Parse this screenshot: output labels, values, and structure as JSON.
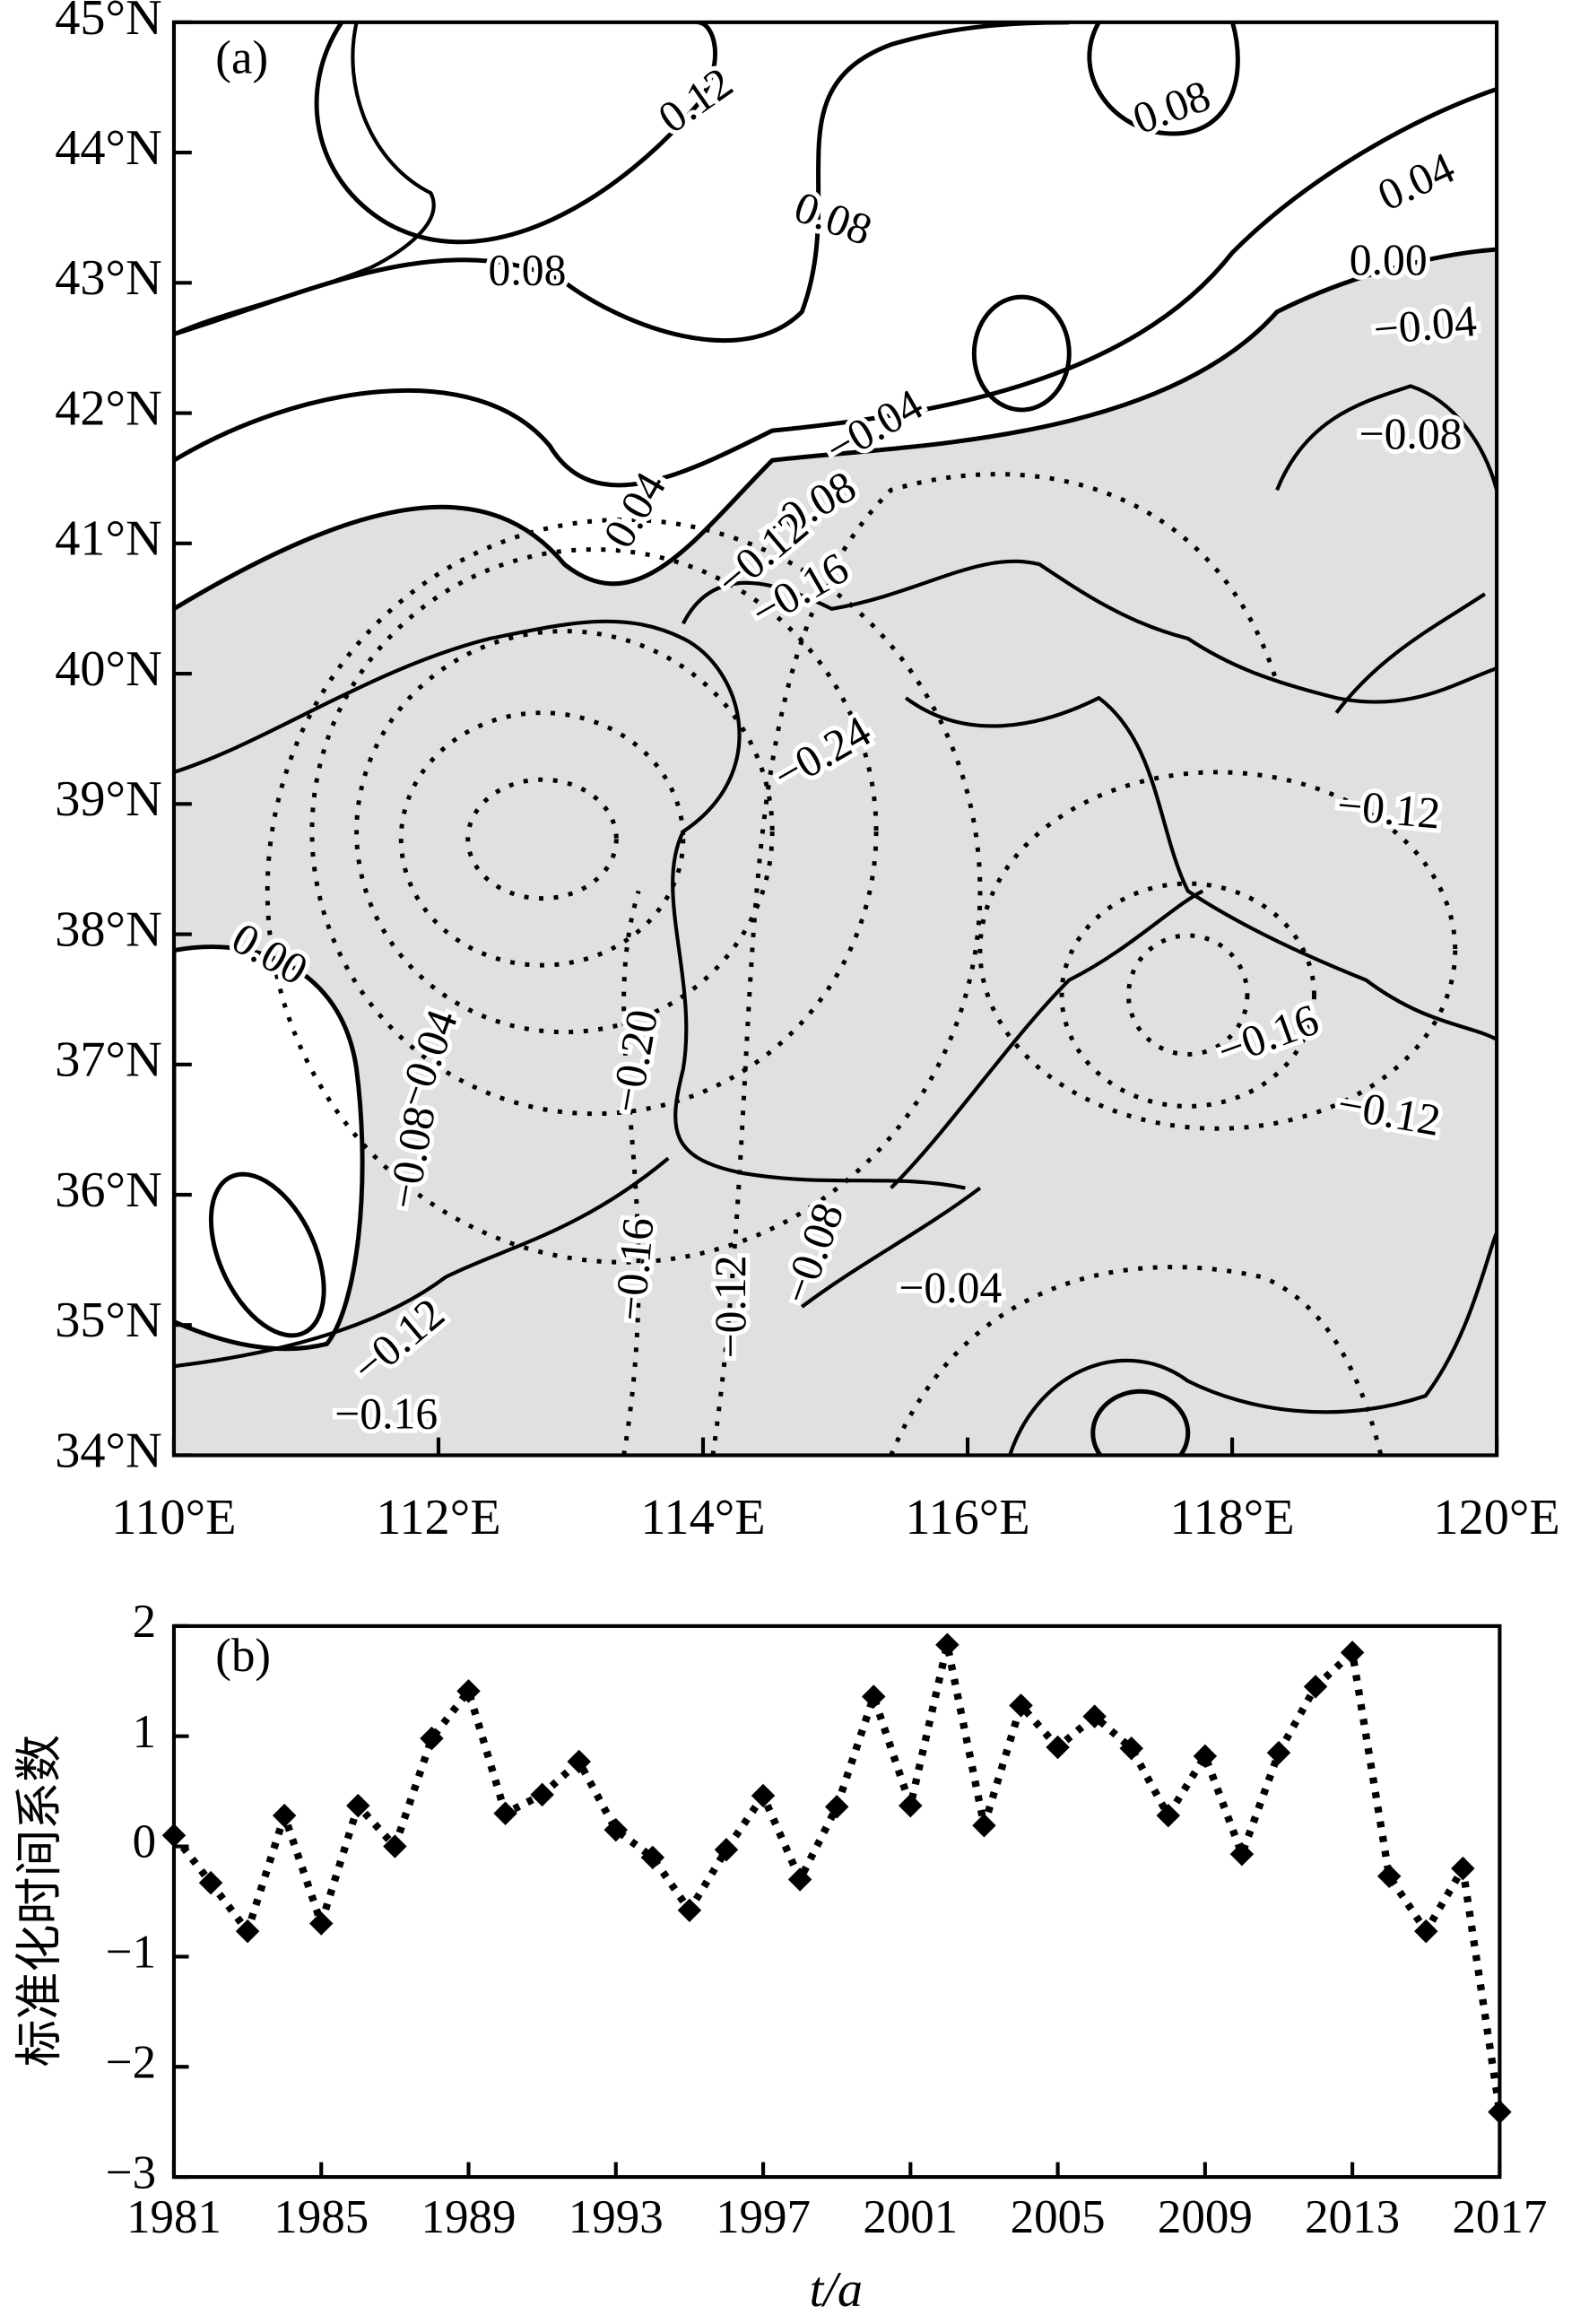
{
  "chart_data": [
    {
      "type": "contour-map",
      "panel_label": "(a)",
      "xlim": [
        110,
        120
      ],
      "ylim": [
        34,
        45
      ],
      "xticks": [
        {
          "value": 110,
          "label": "110°E"
        },
        {
          "value": 112,
          "label": "112°E"
        },
        {
          "value": 114,
          "label": "114°E"
        },
        {
          "value": 116,
          "label": "116°E"
        },
        {
          "value": 118,
          "label": "118°E"
        },
        {
          "value": 120,
          "label": "120°E"
        }
      ],
      "yticks": [
        {
          "value": 34,
          "label": "34°N"
        },
        {
          "value": 35,
          "label": "35°N"
        },
        {
          "value": 36,
          "label": "36°N"
        },
        {
          "value": 37,
          "label": "37°N"
        },
        {
          "value": 38,
          "label": "38°N"
        },
        {
          "value": 39,
          "label": "39°N"
        },
        {
          "value": 40,
          "label": "40°N"
        },
        {
          "value": 41,
          "label": "41°N"
        },
        {
          "value": 42,
          "label": "42°N"
        },
        {
          "value": 43,
          "label": "43°N"
        },
        {
          "value": 44,
          "label": "44°N"
        },
        {
          "value": 45,
          "label": "45°N"
        }
      ],
      "contour_labels": [
        {
          "value": 0.12,
          "label": "0.12"
        },
        {
          "value": 0.08,
          "label": "0.08"
        },
        {
          "value": 0.08,
          "label": "0.08"
        },
        {
          "value": 0.04,
          "label": "0.04"
        },
        {
          "value": 0,
          "label": "0.00"
        },
        {
          "value": 0.08,
          "label": "0.08"
        },
        {
          "value": -0.04,
          "label": "−0.04"
        },
        {
          "value": -0.08,
          "label": "−0.08"
        },
        {
          "value": -0.04,
          "label": "−0.04"
        },
        {
          "value": 0.04,
          "label": "0.04"
        },
        {
          "value": -0.08,
          "label": "−0.08"
        },
        {
          "value": -0.12,
          "label": "−0.12"
        },
        {
          "value": -0.16,
          "label": "−0.16"
        },
        {
          "value": -0.24,
          "label": "−0.24"
        },
        {
          "value": -0.12,
          "label": "−0.12"
        },
        {
          "value": 0,
          "label": "0.00"
        },
        {
          "value": -0.04,
          "label": "−0.04"
        },
        {
          "value": -0.2,
          "label": "−0.20"
        },
        {
          "value": -0.16,
          "label": "−0.16"
        },
        {
          "value": -0.12,
          "label": "−0.12"
        },
        {
          "value": -0.08,
          "label": "−0.08"
        },
        {
          "value": -0.08,
          "label": "−0.08"
        },
        {
          "value": -0.04,
          "label": "−0.04"
        },
        {
          "value": -0.16,
          "label": "−0.16"
        },
        {
          "value": -0.12,
          "label": "−0.12"
        },
        {
          "value": -0.12,
          "label": "−0.12"
        },
        {
          "value": -0.16,
          "label": "−0.16"
        }
      ]
    },
    {
      "type": "line",
      "panel_label": "(b)",
      "color": "#000000",
      "y_label": "标准化时间系数",
      "x_label": "t/a",
      "x": [
        1981,
        1982,
        1983,
        1984,
        1985,
        1986,
        1987,
        1988,
        1989,
        1990,
        1991,
        1992,
        1993,
        1994,
        1995,
        1996,
        1997,
        1998,
        1999,
        2000,
        2001,
        2002,
        2003,
        2004,
        2005,
        2006,
        2007,
        2008,
        2009,
        2010,
        2011,
        2012,
        2013,
        2014,
        2015,
        2016,
        2017
      ],
      "values": [
        0.1,
        -0.33,
        -0.77,
        0.28,
        -0.7,
        0.37,
        0.0,
        0.98,
        1.41,
        0.3,
        0.47,
        0.77,
        0.15,
        -0.1,
        -0.58,
        -0.03,
        0.46,
        -0.3,
        0.36,
        1.36,
        0.37,
        1.83,
        0.19,
        1.28,
        0.9,
        1.18,
        0.89,
        0.28,
        0.82,
        -0.07,
        0.85,
        1.45,
        1.76,
        -0.27,
        -0.77,
        -0.2,
        -2.41
      ],
      "xlim": [
        1981,
        2017
      ],
      "xticks": [
        1981,
        1985,
        1989,
        1993,
        1997,
        2001,
        2005,
        2009,
        2013,
        2017
      ],
      "ylim": [
        -3,
        2
      ],
      "yticks": [
        {
          "value": -3,
          "label": "−3"
        },
        {
          "value": -2,
          "label": "−2"
        },
        {
          "value": -1,
          "label": "−1"
        },
        0,
        1,
        2
      ]
    }
  ]
}
